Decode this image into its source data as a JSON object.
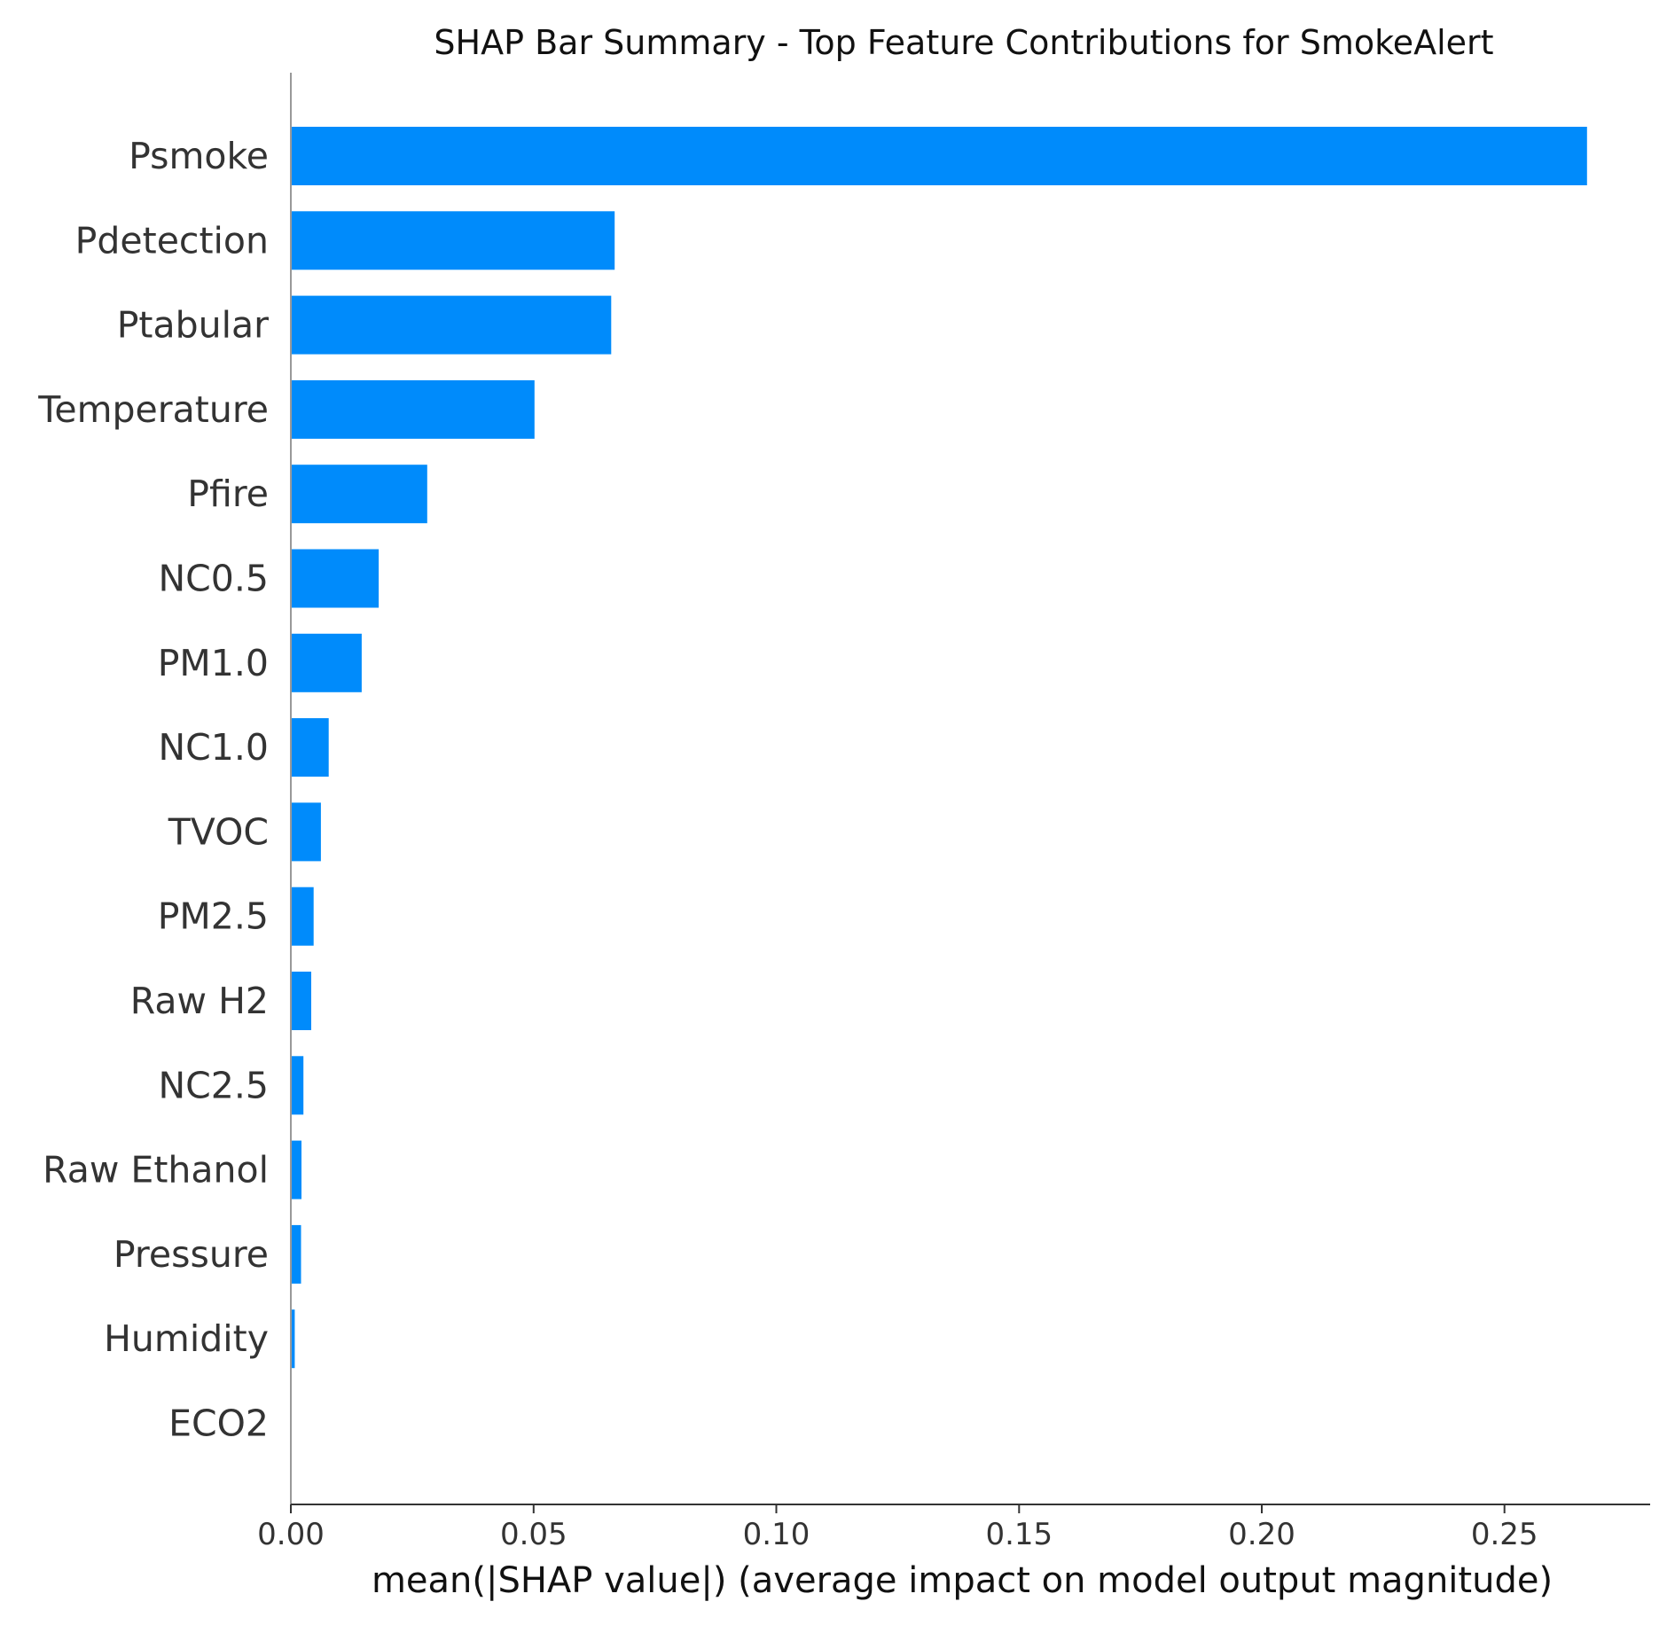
{
  "chart_data": {
    "type": "bar",
    "orientation": "horizontal",
    "title": "SHAP Bar Summary - Top Feature Contributions for SmokeAlert",
    "xlabel": "mean(|SHAP value|) (average impact on model output magnitude)",
    "ylabel": "",
    "xlim": [
      0,
      0.28
    ],
    "x_ticks": [
      0.0,
      0.05,
      0.1,
      0.15,
      0.2,
      0.25
    ],
    "x_tick_labels": [
      "0.00",
      "0.05",
      "0.10",
      "0.15",
      "0.20",
      "0.25"
    ],
    "grid": false,
    "legend": "none",
    "bar_color": "#008bfb",
    "categories": [
      "Psmoke",
      "Pdetection",
      "Ptabular",
      "Temperature",
      "Pfire",
      "NC0.5",
      "PM1.0",
      "NC1.0",
      "TVOC",
      "PM2.5",
      "Raw H2",
      "NC2.5",
      "Raw Ethanol",
      "Pressure",
      "Humidity",
      "ECO2"
    ],
    "values": [
      0.267,
      0.0667,
      0.066,
      0.0502,
      0.0281,
      0.0181,
      0.0146,
      0.0078,
      0.0062,
      0.0047,
      0.0042,
      0.0026,
      0.0022,
      0.0021,
      0.0008,
      0.0001
    ]
  }
}
